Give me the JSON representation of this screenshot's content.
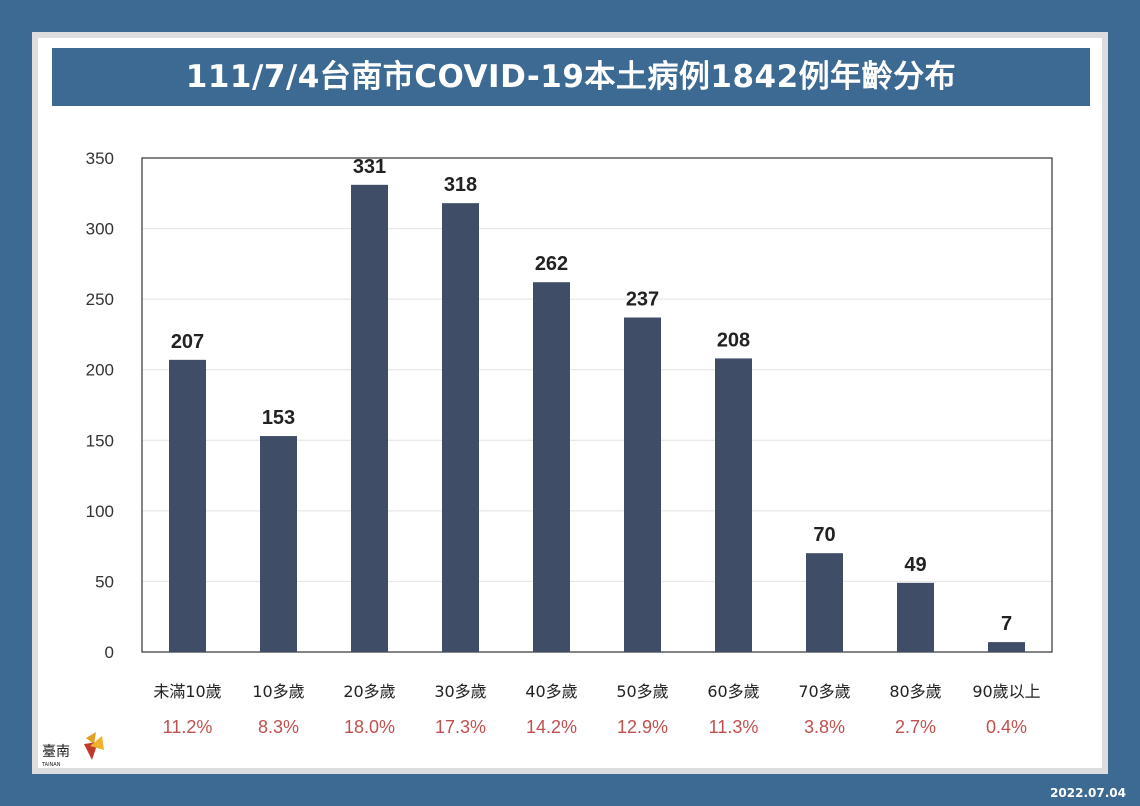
{
  "title": "111/7/4台南市COVID-19本土病例1842例年齡分布",
  "date": "2022.07.04",
  "logo": {
    "text": "臺南",
    "subtext": "TAINAN",
    "icon": "tainan-city-logo"
  },
  "colors": {
    "background": "#3d6a92",
    "bar": "#3f4d66",
    "percent": "#c0504d",
    "axis_text": "#333333"
  },
  "chart_data": {
    "type": "bar",
    "title": "111/7/4台南市COVID-19本土病例1842例年齡分布",
    "xlabel": "",
    "ylabel": "",
    "ylim": [
      0,
      350
    ],
    "yticks": [
      0,
      50,
      100,
      150,
      200,
      250,
      300,
      350
    ],
    "grid": true,
    "categories": [
      "未滿10歲",
      "10多歲",
      "20多歲",
      "30多歲",
      "40多歲",
      "50多歲",
      "60多歲",
      "70多歲",
      "80多歲",
      "90歲以上"
    ],
    "values": [
      207,
      153,
      331,
      318,
      262,
      237,
      208,
      70,
      49,
      7
    ],
    "percentages": [
      "11.2%",
      "8.3%",
      "18.0%",
      "17.3%",
      "14.2%",
      "12.9%",
      "11.3%",
      "3.8%",
      "2.7%",
      "0.4%"
    ]
  }
}
